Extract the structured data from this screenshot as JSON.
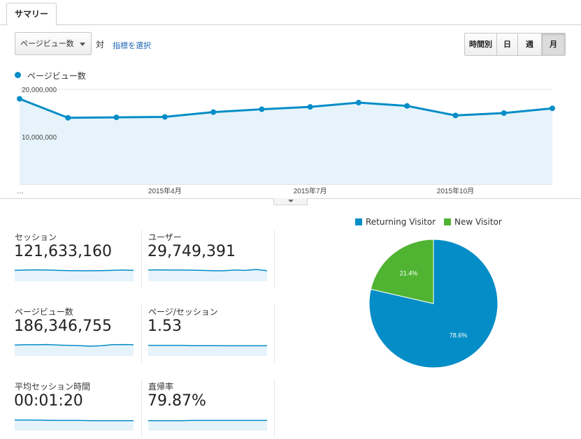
{
  "tab": {
    "label": "サマリー"
  },
  "controls": {
    "metric_select": "ページビュー数",
    "vs_text": "対",
    "choose_metric_link": "指標を選択",
    "granularity": [
      {
        "label": "時間別",
        "active": false
      },
      {
        "label": "日",
        "active": false
      },
      {
        "label": "週",
        "active": false
      },
      {
        "label": "月",
        "active": true
      }
    ]
  },
  "legend": {
    "series_label": "ページビュー数",
    "color": "#058dc7"
  },
  "chart_data": {
    "type": "area",
    "series": [
      {
        "name": "ページビュー数",
        "values": [
          18000000,
          14000000,
          14100000,
          14200000,
          15200000,
          15800000,
          16300000,
          17200000,
          16500000,
          14500000,
          15000000,
          16000000
        ]
      }
    ],
    "x_tick_labels": [
      "…",
      "2015年4月",
      "2015年7月",
      "2015年10月"
    ],
    "y_tick_labels": [
      "20,000,000",
      "10,000,000"
    ],
    "ylim": [
      0,
      20000000
    ],
    "color": "#058dc7"
  },
  "scorecards": [
    {
      "label": "セッション",
      "value": "121,633,160",
      "spark": [
        0.6,
        0.62,
        0.63,
        0.62,
        0.6,
        0.59,
        0.58,
        0.58,
        0.59,
        0.6,
        0.62,
        0.6
      ]
    },
    {
      "label": "ユーザー",
      "value": "29,749,391",
      "spark": [
        0.62,
        0.63,
        0.62,
        0.62,
        0.61,
        0.6,
        0.58,
        0.58,
        0.62,
        0.6,
        0.65,
        0.58
      ]
    },
    {
      "label": "ページビュー数",
      "value": "186,346,755",
      "spark": [
        0.6,
        0.62,
        0.62,
        0.63,
        0.6,
        0.58,
        0.57,
        0.54,
        0.56,
        0.62,
        0.63,
        0.62
      ]
    },
    {
      "label": "ページ/セッション",
      "value": "1.53",
      "spark": [
        0.58,
        0.58,
        0.58,
        0.58,
        0.57,
        0.57,
        0.57,
        0.56,
        0.56,
        0.56,
        0.56,
        0.56
      ]
    },
    {
      "label": "平均セッション時間",
      "value": "00:01:20",
      "spark": [
        0.58,
        0.58,
        0.58,
        0.57,
        0.56,
        0.56,
        0.56,
        0.55,
        0.55,
        0.55,
        0.55,
        0.55
      ]
    },
    {
      "label": "直帰率",
      "value": "79.87%",
      "spark": [
        0.55,
        0.55,
        0.55,
        0.55,
        0.56,
        0.56,
        0.56,
        0.56,
        0.56,
        0.56,
        0.56,
        0.56
      ]
    }
  ],
  "pie": {
    "slices": [
      {
        "name": "Returning Visitor",
        "value": 78.6,
        "label": "78.6%",
        "color": "#058dc7"
      },
      {
        "name": "New Visitor",
        "value": 21.4,
        "label": "21.4%",
        "color": "#50b432"
      }
    ]
  }
}
